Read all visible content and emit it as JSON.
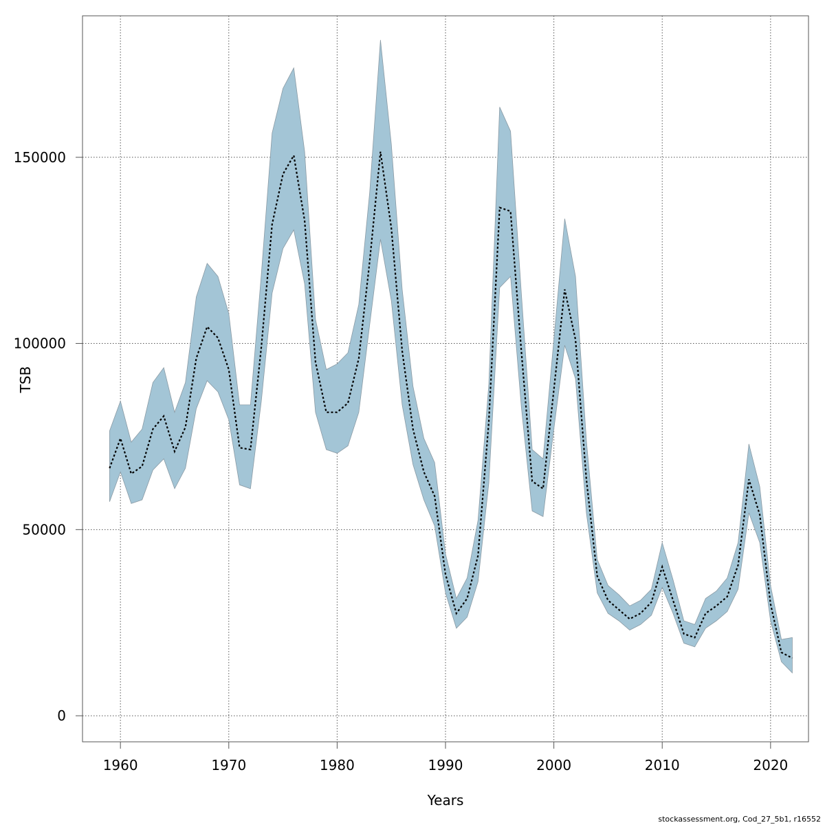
{
  "chart_data": {
    "type": "area",
    "xlabel": "Years",
    "ylabel": "TSB",
    "xlim": [
      1956.5,
      2023.5
    ],
    "ylim": [
      -7000,
      188000
    ],
    "x_ticks": [
      1960,
      1970,
      1980,
      1990,
      2000,
      2010,
      2020
    ],
    "y_ticks": [
      0,
      50000,
      100000,
      150000
    ],
    "grid": true,
    "band_color": "#a3c5d6",
    "line_color": "#000000",
    "x": [
      1959,
      1960,
      1961,
      1962,
      1963,
      1964,
      1965,
      1966,
      1967,
      1968,
      1969,
      1970,
      1971,
      1972,
      1973,
      1974,
      1975,
      1976,
      1977,
      1978,
      1979,
      1980,
      1981,
      1982,
      1983,
      1984,
      1985,
      1986,
      1987,
      1988,
      1989,
      1990,
      1991,
      1992,
      1993,
      1994,
      1995,
      1996,
      1997,
      1998,
      1999,
      2000,
      2001,
      2002,
      2003,
      2004,
      2005,
      2006,
      2007,
      2008,
      2009,
      2010,
      2011,
      2012,
      2013,
      2014,
      2015,
      2016,
      2017,
      2018,
      2019,
      2020,
      2021,
      2022
    ],
    "series": [
      {
        "name": "TSB",
        "values": [
          66500,
          74500,
          65000,
          67000,
          77000,
          80500,
          71000,
          77500,
          96000,
          104500,
          101500,
          93000,
          72000,
          71500,
          99000,
          132000,
          145500,
          150500,
          133000,
          95000,
          81500,
          81500,
          84000,
          96000,
          122000,
          151500,
          131000,
          98000,
          77000,
          65500,
          59000,
          38000,
          27500,
          31500,
          43000,
          79000,
          136500,
          135500,
          98000,
          63000,
          61000,
          87500,
          114500,
          101000,
          63500,
          37500,
          31000,
          28500,
          26000,
          27500,
          30500,
          40000,
          31000,
          22000,
          21000,
          27500,
          29500,
          32000,
          40500,
          63500,
          54000,
          30000,
          17000,
          15500
        ]
      },
      {
        "name": "upper",
        "values": [
          76500,
          84500,
          73500,
          77000,
          89500,
          93500,
          81500,
          89500,
          112500,
          121500,
          118000,
          108000,
          83500,
          83500,
          118500,
          156500,
          168500,
          174000,
          151500,
          106500,
          93000,
          94500,
          97500,
          110500,
          140500,
          181500,
          153500,
          114500,
          88500,
          74500,
          68000,
          43500,
          31500,
          37000,
          52500,
          89000,
          163500,
          157000,
          113500,
          71500,
          69000,
          101000,
          133500,
          118000,
          74000,
          42000,
          35000,
          32500,
          29500,
          31000,
          34000,
          46500,
          36500,
          25500,
          24500,
          31500,
          33500,
          37000,
          46500,
          73000,
          61500,
          35000,
          20500,
          21000
        ]
      },
      {
        "name": "lower",
        "values": [
          57500,
          65500,
          57000,
          58000,
          66000,
          69000,
          61000,
          66500,
          82500,
          90000,
          87000,
          79500,
          62000,
          61000,
          84500,
          113500,
          125500,
          130500,
          116000,
          81500,
          71500,
          70500,
          72500,
          81500,
          105000,
          128000,
          111500,
          83500,
          67500,
          58000,
          51000,
          33000,
          23500,
          26500,
          36000,
          62500,
          115000,
          118000,
          83000,
          55000,
          53500,
          77000,
          99500,
          90500,
          54500,
          33000,
          27500,
          25500,
          23000,
          24500,
          27000,
          34500,
          27500,
          19500,
          18500,
          23500,
          25500,
          28000,
          34000,
          54500,
          46500,
          25500,
          14500,
          11500
        ]
      }
    ]
  },
  "footer_text": "stockassessment.org, Cod_27_5b1, r16552"
}
